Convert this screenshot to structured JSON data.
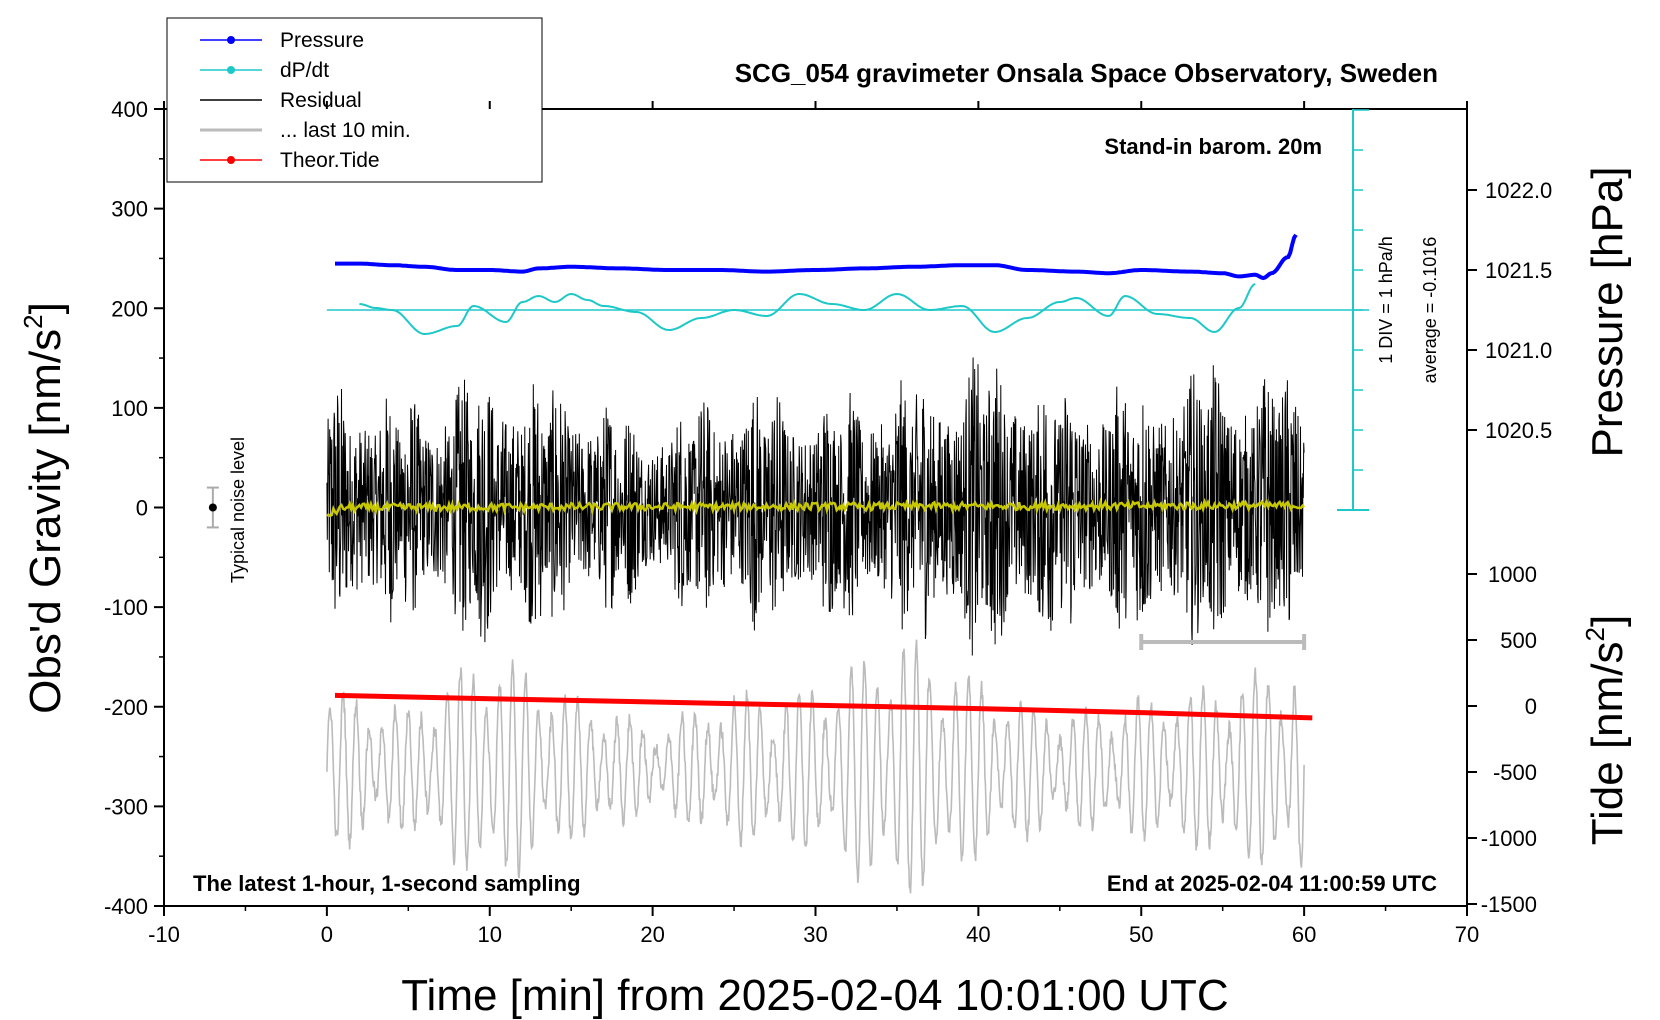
{
  "chart_data": {
    "type": "line",
    "title": "SCG_054 gravimeter Onsala Space Observatory, Sweden",
    "xlabel": "Time [min] from 2025-02-04 10:01:00 UTC",
    "ylabel": "Obs'd Gravity [nm/s",
    "ylabel_sup": "2",
    "ylabel_end": "]",
    "right_upper_label": "Pressure [hPa]",
    "right_lower_label": "Tide [nm/s",
    "right_lower_sup": "2",
    "right_lower_end": "]",
    "xlim": [
      -10,
      70
    ],
    "ylim": [
      -400,
      400
    ],
    "x_ticks": [
      "-10",
      "0",
      "10",
      "20",
      "30",
      "40",
      "50",
      "60",
      "70"
    ],
    "y_ticks": [
      "400",
      "300",
      "200",
      "100",
      "0",
      "-100",
      "-200",
      "-300",
      "-400"
    ],
    "pressure_ticks": [
      "1022.0",
      "1021.5",
      "1021.0",
      "1020.5"
    ],
    "tide_ticks": [
      "1000",
      "500",
      "0",
      "-500",
      "-1000",
      "-1500"
    ],
    "annotations": {
      "barometer": "Stand-in barom. 20m",
      "div": "1 DIV = 1 hPa/h",
      "average": "average = -0.1016",
      "noise": "Typical noise level",
      "bottom_left": "The latest 1-hour, 1-second sampling",
      "bottom_right": "End at 2025-02-04 11:00:59 UTC"
    },
    "legend": [
      {
        "label": "Pressure",
        "color": "#0000ff",
        "marker": true
      },
      {
        "label": "dP/dt",
        "color": "#1ec8c8",
        "marker": true
      },
      {
        "label": "Residual",
        "color": "#000000",
        "marker": false
      },
      {
        "label": "... last 10 min.",
        "color": "#bbbbbb",
        "marker": false
      },
      {
        "label": "Theor.Tide",
        "color": "#ff0000",
        "marker": true
      }
    ],
    "series": [
      {
        "name": "Pressure",
        "axis": "pressure_hPa",
        "color": "#0000ff",
        "x": [
          0.5,
          2,
          4,
          6,
          8,
          10,
          12,
          13,
          15,
          18,
          21,
          24,
          27,
          30,
          33,
          36,
          39,
          41,
          43,
          46,
          48,
          50,
          53,
          55,
          56,
          57,
          57.5,
          58,
          59,
          59.5
        ],
        "y": [
          1021.54,
          1021.54,
          1021.53,
          1021.52,
          1021.5,
          1021.5,
          1021.49,
          1021.51,
          1021.52,
          1021.51,
          1021.5,
          1021.5,
          1021.49,
          1021.5,
          1021.51,
          1021.52,
          1021.53,
          1021.53,
          1021.5,
          1021.49,
          1021.48,
          1021.5,
          1021.49,
          1021.48,
          1021.46,
          1021.47,
          1021.45,
          1021.48,
          1021.58,
          1021.72
        ]
      },
      {
        "name": "dP/dt",
        "axis": "dPdt_hPa_per_h",
        "color": "#1ec8c8",
        "x": [
          2,
          3,
          4,
          6,
          8,
          9,
          11,
          12,
          13,
          14,
          15,
          16,
          17,
          19,
          21,
          23,
          25,
          27,
          29,
          31,
          33,
          35,
          37,
          39,
          41,
          43,
          45,
          46,
          48,
          49,
          51,
          53,
          54.5,
          56,
          57
        ],
        "y": [
          0.15,
          0.05,
          0.0,
          -0.6,
          -0.4,
          0.1,
          -0.3,
          0.2,
          0.35,
          0.2,
          0.4,
          0.25,
          0.1,
          -0.05,
          -0.5,
          -0.2,
          0.0,
          -0.15,
          0.4,
          0.15,
          0.0,
          0.4,
          0.0,
          0.1,
          -0.55,
          -0.2,
          0.2,
          0.3,
          -0.15,
          0.35,
          -0.1,
          -0.2,
          -0.55,
          0.05,
          0.65
        ]
      },
      {
        "name": "Residual",
        "axis": "gravity_nm_s2",
        "color": "#000000",
        "x": [
          0,
          5,
          10,
          15,
          20,
          25,
          30,
          35,
          40,
          45,
          50,
          55,
          60
        ],
        "envelope": [
          145,
          120,
          150,
          130,
          95,
          135,
          120,
          135,
          165,
          140,
          135,
          155,
          140
        ]
      },
      {
        "name": "... last 10 min.",
        "axis": "gravity_nm_s2",
        "color": "#bbbbbb",
        "x": [
          0,
          5,
          10,
          15,
          20,
          25,
          30,
          35,
          40,
          45,
          50,
          55,
          60
        ],
        "amplitude": [
          80,
          60,
          120,
          75,
          40,
          75,
          80,
          135,
          90,
          55,
          70,
          85,
          115
        ],
        "center": -262
      },
      {
        "name": "Theor.Tide",
        "axis": "tide_nm_s2",
        "color": "#ff0000",
        "x": [
          0.5,
          10,
          20,
          30,
          40,
          50,
          60.5
        ],
        "y": [
          80,
          55,
          30,
          5,
          -20,
          -50,
          -90
        ]
      },
      {
        "name": "Filtered residual",
        "axis": "gravity_nm_s2",
        "color": "#c8c800",
        "x": [
          0,
          1,
          60
        ],
        "y": [
          -8,
          0,
          2
        ]
      }
    ]
  }
}
